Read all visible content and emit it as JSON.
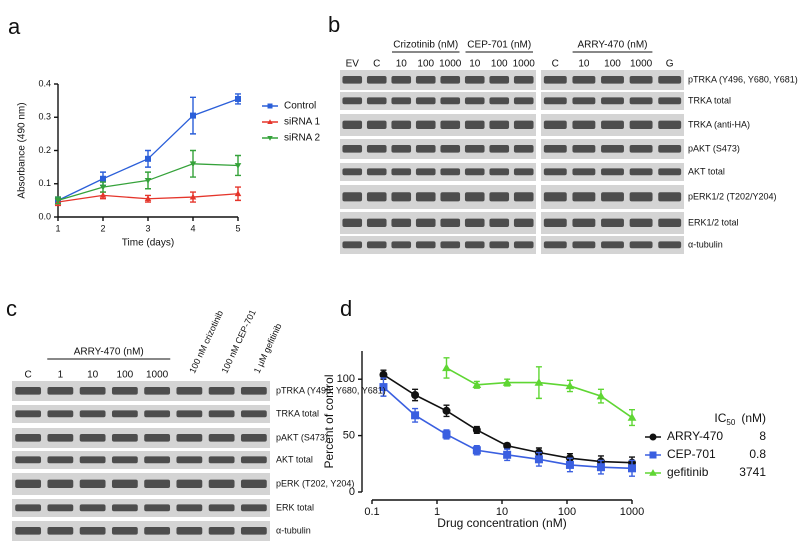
{
  "panel_labels": [
    "a",
    "b",
    "c",
    "d"
  ],
  "chart_data": [
    {
      "type": "line",
      "xlabel": "Time (days)",
      "ylabel": "Absorbance (490 nm)",
      "x": [
        1,
        2,
        3,
        4,
        5
      ],
      "xlim": [
        1,
        5
      ],
      "xticks": [
        1,
        2,
        3,
        4,
        5
      ],
      "ylim": [
        0,
        0.4
      ],
      "yticks": [
        {
          "value": 0,
          "label": "0.0"
        },
        0.1,
        0.2,
        0.3,
        0.4
      ],
      "legend": "right",
      "series": [
        {
          "name": "Control",
          "color": "#2b5fd9",
          "marker": "square",
          "values": [
            0.05,
            0.115,
            0.175,
            0.305,
            0.355
          ],
          "errors": [
            0.01,
            0.02,
            0.025,
            0.055,
            0.015
          ]
        },
        {
          "name": "siRNA 1",
          "color": "#e5352b",
          "marker": "triangle-up",
          "values": [
            0.045,
            0.065,
            0.055,
            0.06,
            0.07
          ],
          "errors": [
            0.01,
            0.01,
            0.01,
            0.015,
            0.02
          ]
        },
        {
          "name": "siRNA 2",
          "color": "#35a23a",
          "marker": "triangle-down",
          "values": [
            0.05,
            0.09,
            0.11,
            0.16,
            0.155
          ],
          "errors": [
            0.01,
            0.015,
            0.025,
            0.04,
            0.03
          ]
        }
      ]
    },
    {
      "type": "line",
      "xscale": "log",
      "xlabel": "Drug concentration (nM)",
      "ylabel": "Percent of control",
      "xlim": [
        0.1,
        1000
      ],
      "xticks": [
        0.1,
        1,
        10,
        100,
        1000
      ],
      "ylim": [
        0,
        125
      ],
      "yticks": [
        0,
        50,
        100
      ],
      "legend": "right",
      "legend_title": {
        "text": "IC",
        "sub": "50",
        "unit": "(nM)"
      },
      "series": [
        {
          "name": "ARRY-470",
          "ic50": 8,
          "color": "#111111",
          "marker": "circle",
          "x": [
            0.15,
            0.46,
            1.4,
            4.1,
            12,
            37,
            111,
            333,
            1000
          ],
          "values": [
            104,
            86,
            72,
            55,
            41,
            35,
            30,
            27,
            26
          ],
          "errors": [
            4,
            5,
            5,
            3,
            2,
            4,
            4,
            5,
            5
          ]
        },
        {
          "name": "CEP-701",
          "ic50": 0.8,
          "color": "#3a5fe0",
          "marker": "square",
          "x": [
            0.15,
            0.46,
            1.4,
            4.1,
            12,
            37,
            111,
            333,
            1000
          ],
          "values": [
            93,
            68,
            51,
            37,
            33,
            29,
            24,
            22,
            21
          ],
          "errors": [
            8,
            6,
            4,
            4,
            5,
            6,
            6,
            6,
            7
          ]
        },
        {
          "name": "gefitinib",
          "ic50": 3741,
          "color": "#5fd633",
          "marker": "triangle-up",
          "x": [
            1.4,
            4.1,
            12,
            37,
            111,
            333,
            1000
          ],
          "values": [
            110,
            95,
            97,
            97,
            94,
            85,
            66
          ],
          "errors": [
            9,
            3,
            3,
            14,
            5,
            6,
            7
          ]
        }
      ]
    }
  ],
  "blots": [
    {
      "blocks": [
        [
          "EV",
          "C",
          {
            "group": "Crizotinib (nM)",
            "lanes": [
              "10",
              "100",
              "1000"
            ]
          },
          {
            "group": "CEP-701 (nM)",
            "lanes": [
              "10",
              "100",
              "1000"
            ]
          }
        ],
        [
          "C",
          {
            "group": "ARRY-470 (nM)",
            "lanes": [
              "10",
              "100",
              "1000"
            ]
          },
          "G"
        ]
      ],
      "rows": [
        "pTRKA (Y496, Y680, Y681)",
        "TRKA total",
        "TRKA (anti-HA)",
        "pAKT (S473)",
        "AKT total",
        "pERK1/2 (T202/Y204)",
        "ERK1/2 total",
        "α-tubulin"
      ]
    },
    {
      "blocks": [
        [
          "C",
          {
            "group": "ARRY-470 (nM)",
            "lanes": [
              "1",
              "10",
              "100",
              "1000"
            ]
          },
          "100 nM crizotinib",
          "100 nM CEP-701",
          "1 µM gefitinib"
        ]
      ],
      "rows": [
        "pTRKA (Y496, Y680, Y681)",
        "TRKA total",
        "pAKT (S473)",
        "AKT total",
        "pERK (T202, Y204)",
        "ERK total",
        "α-tubulin"
      ]
    }
  ]
}
